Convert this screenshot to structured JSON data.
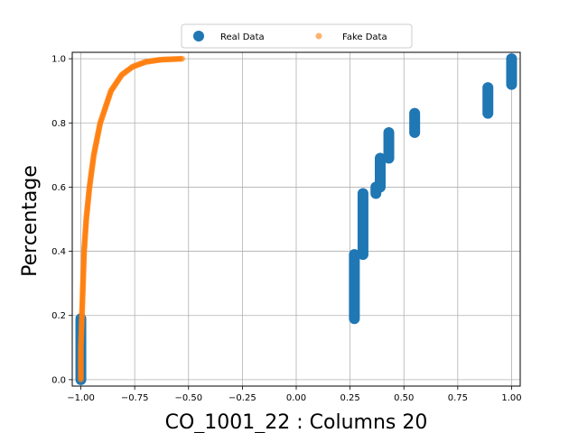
{
  "chart_data": {
    "type": "scatter",
    "title": "",
    "xlabel": "CO_1001_22 : Columns 20",
    "ylabel": "Percentage",
    "xlim": [
      -1.04,
      1.04
    ],
    "ylim": [
      -0.02,
      1.02
    ],
    "xticks": [
      -1.0,
      -0.75,
      -0.5,
      -0.25,
      0.0,
      0.25,
      0.5,
      0.75,
      1.0
    ],
    "xtick_labels": [
      "−1.00",
      "−0.75",
      "−0.50",
      "−0.25",
      "0.00",
      "0.25",
      "0.50",
      "0.75",
      "1.00"
    ],
    "yticks": [
      0.0,
      0.2,
      0.4,
      0.6,
      0.8,
      1.0
    ],
    "ytick_labels": [
      "0.0",
      "0.2",
      "0.4",
      "0.6",
      "0.8",
      "1.0"
    ],
    "grid": true,
    "legend": {
      "position": "top-center",
      "columns": 2
    },
    "series": [
      {
        "name": "Real Data",
        "color": "#1f77b4",
        "marker": "large-circle",
        "segments": [
          {
            "x": -1.0,
            "y_from": 0.0,
            "y_to": 0.19
          },
          {
            "x": 0.27,
            "y_from": 0.19,
            "y_to": 0.39
          },
          {
            "x": 0.31,
            "y_from": 0.39,
            "y_to": 0.58
          },
          {
            "x": 0.37,
            "y_from": 0.58,
            "y_to": 0.6
          },
          {
            "x": 0.39,
            "y_from": 0.6,
            "y_to": 0.69
          },
          {
            "x": 0.43,
            "y_from": 0.69,
            "y_to": 0.77
          },
          {
            "x": 0.55,
            "y_from": 0.77,
            "y_to": 0.83
          },
          {
            "x": 0.89,
            "y_from": 0.83,
            "y_to": 0.91
          },
          {
            "x": 1.0,
            "y_from": 0.92,
            "y_to": 1.0
          }
        ]
      },
      {
        "name": "Fake Data",
        "color": "#ff7f0e",
        "marker": "small-circle",
        "points": [
          [
            -1.0,
            0.0
          ],
          [
            -1.0,
            0.1
          ],
          [
            -0.995,
            0.2
          ],
          [
            -0.99,
            0.3
          ],
          [
            -0.985,
            0.4
          ],
          [
            -0.975,
            0.5
          ],
          [
            -0.96,
            0.6
          ],
          [
            -0.94,
            0.7
          ],
          [
            -0.91,
            0.8
          ],
          [
            -0.86,
            0.9
          ],
          [
            -0.81,
            0.95
          ],
          [
            -0.76,
            0.975
          ],
          [
            -0.7,
            0.99
          ],
          [
            -0.63,
            0.997
          ],
          [
            -0.53,
            1.0
          ]
        ]
      }
    ]
  }
}
